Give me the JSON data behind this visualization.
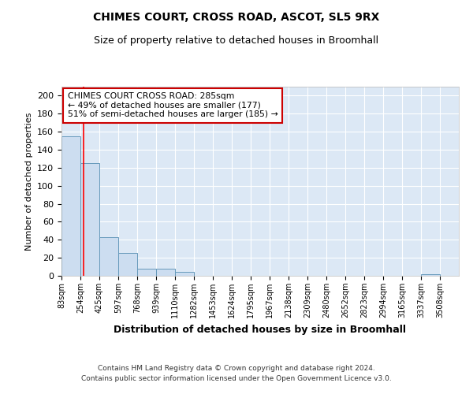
{
  "title1": "CHIMES COURT, CROSS ROAD, ASCOT, SL5 9RX",
  "title2": "Size of property relative to detached houses in Broomhall",
  "xlabel": "Distribution of detached houses by size in Broomhall",
  "ylabel": "Number of detached properties",
  "bar_values": [
    155,
    125,
    43,
    25,
    8,
    8,
    4,
    0,
    0,
    0,
    0,
    0,
    0,
    0,
    0,
    0,
    0,
    0,
    0,
    2,
    0
  ],
  "bin_edges": [
    83,
    254,
    425,
    597,
    768,
    939,
    1110,
    1282,
    1453,
    1624,
    1795,
    1967,
    2138,
    2309,
    2480,
    2652,
    2823,
    2994,
    3165,
    3337,
    3508
  ],
  "tick_labels": [
    "83sqm",
    "254sqm",
    "425sqm",
    "597sqm",
    "768sqm",
    "939sqm",
    "1110sqm",
    "1282sqm",
    "1453sqm",
    "1624sqm",
    "1795sqm",
    "1967sqm",
    "2138sqm",
    "2309sqm",
    "2480sqm",
    "2652sqm",
    "2823sqm",
    "2994sqm",
    "3165sqm",
    "3337sqm",
    "3508sqm"
  ],
  "bar_color": "#ccddf0",
  "bar_edge_color": "#6699bb",
  "red_line_x": 285,
  "annotation_title": "CHIMES COURT CROSS ROAD: 285sqm",
  "annotation_line1": "← 49% of detached houses are smaller (177)",
  "annotation_line2": "51% of semi-detached houses are larger (185) →",
  "annotation_box_color": "#ffffff",
  "annotation_box_edge": "#cc0000",
  "ylim": [
    0,
    210
  ],
  "yticks": [
    0,
    20,
    40,
    60,
    80,
    100,
    120,
    140,
    160,
    180,
    200
  ],
  "footer1": "Contains HM Land Registry data © Crown copyright and database right 2024.",
  "footer2": "Contains public sector information licensed under the Open Government Licence v3.0.",
  "fig_bg_color": "#ffffff",
  "plot_bg_color": "#dce8f5"
}
